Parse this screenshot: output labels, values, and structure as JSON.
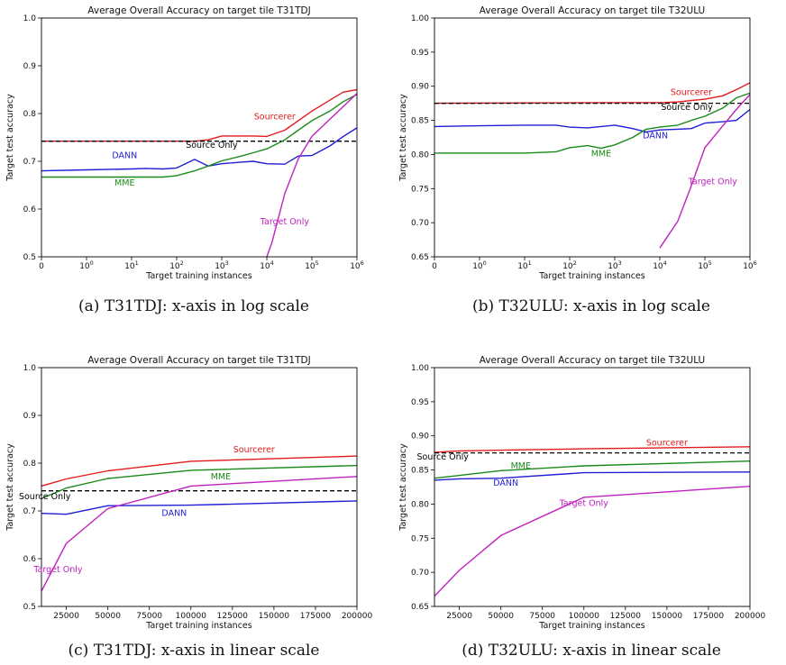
{
  "colors": {
    "Sourcerer": "#e41a1c",
    "Source Only": "#000000",
    "DANN": "#1f1fd6",
    "MME": "#1a8a1a",
    "Target Only": "#c020c0"
  },
  "chart_data": [
    {
      "type": "line",
      "caption": "(a) T31TDJ: x-axis in log scale",
      "title": "Average Overall Accuracy on target tile T31TDJ",
      "xlabel": "Target training instances",
      "ylabel": "Target test accuracy",
      "xscale": "symlog",
      "xlim": [
        0,
        1000000
      ],
      "ylim": [
        0.5,
        1.0
      ],
      "yticks": [
        0.5,
        0.6,
        0.7,
        0.8,
        0.9,
        1.0
      ],
      "ytick_labels": [
        "0.5",
        "0.6",
        "0.7",
        "0.8",
        "0.9",
        "1.0"
      ],
      "xticks": [
        0,
        1,
        10,
        100,
        1000,
        10000,
        100000,
        1000000
      ],
      "xtick_labels": [
        "0",
        "10^0",
        "10^1",
        "10^2",
        "10^3",
        "10^4",
        "10^5",
        "10^6"
      ],
      "series": [
        {
          "name": "Sourcerer",
          "dash": false,
          "x": [
            0,
            250,
            500,
            1000,
            2500,
            5000,
            10000,
            25000,
            50000,
            100000,
            250000,
            500000,
            1000000
          ],
          "y": [
            0.742,
            0.742,
            0.745,
            0.753,
            0.753,
            0.753,
            0.752,
            0.765,
            0.785,
            0.805,
            0.828,
            0.845,
            0.85
          ]
        },
        {
          "name": "Source Only",
          "dash": true,
          "x": [
            0,
            1000000
          ],
          "y": [
            0.742,
            0.742
          ]
        },
        {
          "name": "DANN",
          "dash": false,
          "x": [
            0,
            1,
            10,
            20,
            50,
            100,
            250,
            500,
            1000,
            2500,
            5000,
            10000,
            25000,
            50000,
            100000,
            250000,
            500000,
            1000000
          ],
          "y": [
            0.68,
            0.682,
            0.684,
            0.685,
            0.684,
            0.686,
            0.704,
            0.69,
            0.695,
            0.698,
            0.7,
            0.695,
            0.694,
            0.711,
            0.712,
            0.732,
            0.752,
            0.77
          ]
        },
        {
          "name": "MME",
          "dash": false,
          "x": [
            0,
            1,
            10,
            50,
            100,
            250,
            500,
            1000,
            2500,
            5000,
            10000,
            25000,
            50000,
            100000,
            250000,
            500000,
            1000000
          ],
          "y": [
            0.667,
            0.667,
            0.667,
            0.667,
            0.67,
            0.68,
            0.69,
            0.701,
            0.71,
            0.718,
            0.726,
            0.745,
            0.765,
            0.785,
            0.805,
            0.825,
            0.84
          ]
        },
        {
          "name": "Target Only",
          "dash": false,
          "x": [
            10000,
            13000,
            25000,
            50000,
            100000,
            250000,
            500000,
            1000000
          ],
          "y": [
            0.5,
            0.53,
            0.632,
            0.705,
            0.752,
            0.788,
            0.815,
            0.842
          ]
        }
      ],
      "annotations": [
        {
          "text": "Sourcerer",
          "series": "Sourcerer",
          "x": 15000,
          "y": 0.788
        },
        {
          "text": "Source Only",
          "series": "Source Only",
          "x": 600,
          "y": 0.728
        },
        {
          "text": "DANN",
          "series": "DANN",
          "x": 7,
          "y": 0.707
        },
        {
          "text": "MME",
          "series": "MME",
          "x": 7,
          "y": 0.649
        },
        {
          "text": "Target Only",
          "series": "Target Only",
          "x": 25000,
          "y": 0.568
        }
      ]
    },
    {
      "type": "line",
      "caption": "(b) T32ULU: x-axis in log scale",
      "title": "Average Overall Accuracy on target tile T32ULU",
      "xlabel": "Target training instances",
      "ylabel": "Target test accuracy",
      "xscale": "symlog",
      "xlim": [
        0,
        1000000
      ],
      "ylim": [
        0.65,
        1.0
      ],
      "yticks": [
        0.65,
        0.7,
        0.75,
        0.8,
        0.85,
        0.9,
        0.95,
        1.0
      ],
      "ytick_labels": [
        "0.65",
        "0.70",
        "0.75",
        "0.80",
        "0.85",
        "0.90",
        "0.95",
        "1.00"
      ],
      "xticks": [
        0,
        1,
        10,
        100,
        1000,
        10000,
        100000,
        1000000
      ],
      "xtick_labels": [
        "0",
        "10^0",
        "10^1",
        "10^2",
        "10^3",
        "10^4",
        "10^5",
        "10^6"
      ],
      "series": [
        {
          "name": "Sourcerer",
          "dash": false,
          "x": [
            0,
            1000,
            10000,
            25000,
            50000,
            100000,
            250000,
            500000,
            1000000
          ],
          "y": [
            0.875,
            0.876,
            0.876,
            0.877,
            0.879,
            0.881,
            0.886,
            0.895,
            0.905
          ]
        },
        {
          "name": "Source Only",
          "dash": true,
          "x": [
            0,
            1000000
          ],
          "y": [
            0.875,
            0.875
          ]
        },
        {
          "name": "DANN",
          "dash": false,
          "x": [
            0,
            1,
            10,
            50,
            100,
            250,
            500,
            1000,
            2500,
            5000,
            10000,
            25000,
            50000,
            100000,
            250000,
            500000,
            1000000
          ],
          "y": [
            0.841,
            0.842,
            0.843,
            0.843,
            0.84,
            0.839,
            0.841,
            0.843,
            0.838,
            0.833,
            0.836,
            0.837,
            0.838,
            0.846,
            0.848,
            0.85,
            0.866
          ]
        },
        {
          "name": "MME",
          "dash": false,
          "x": [
            0,
            1,
            10,
            50,
            100,
            250,
            500,
            1000,
            2500,
            5000,
            10000,
            25000,
            50000,
            100000,
            250000,
            500000,
            1000000
          ],
          "y": [
            0.802,
            0.802,
            0.802,
            0.804,
            0.81,
            0.813,
            0.809,
            0.814,
            0.825,
            0.837,
            0.84,
            0.843,
            0.85,
            0.856,
            0.868,
            0.883,
            0.89
          ]
        },
        {
          "name": "Target Only",
          "dash": false,
          "x": [
            10000,
            25000,
            50000,
            100000,
            250000,
            500000,
            1000000
          ],
          "y": [
            0.663,
            0.702,
            0.754,
            0.81,
            0.842,
            0.866,
            0.888
          ]
        }
      ],
      "annotations": [
        {
          "text": "Sourcerer",
          "series": "Sourcerer",
          "x": 50000,
          "y": 0.887
        },
        {
          "text": "Source Only",
          "series": "Source Only",
          "x": 40000,
          "y": 0.865
        },
        {
          "text": "DANN",
          "series": "DANN",
          "x": 8000,
          "y": 0.824
        },
        {
          "text": "MME",
          "series": "MME",
          "x": 500,
          "y": 0.797
        },
        {
          "text": "Target Only",
          "series": "Target Only",
          "x": 150000,
          "y": 0.756
        }
      ]
    },
    {
      "type": "line",
      "caption": "(c) T31TDJ: x-axis in linear scale",
      "title": "Average Overall Accuracy on target tile T31TDJ",
      "xlabel": "Target training instances",
      "ylabel": "Target test accuracy",
      "xscale": "linear",
      "xlim": [
        10000,
        200000
      ],
      "ylim": [
        0.5,
        1.0
      ],
      "yticks": [
        0.5,
        0.6,
        0.7,
        0.8,
        0.9,
        1.0
      ],
      "ytick_labels": [
        "0.5",
        "0.6",
        "0.7",
        "0.8",
        "0.9",
        "1.0"
      ],
      "xticks": [
        25000,
        50000,
        75000,
        100000,
        125000,
        150000,
        175000,
        200000
      ],
      "xtick_labels": [
        "25000",
        "50000",
        "75000",
        "100000",
        "125000",
        "150000",
        "175000",
        "200000"
      ],
      "series": [
        {
          "name": "Sourcerer",
          "dash": false,
          "x": [
            10000,
            25000,
            50000,
            100000,
            200000
          ],
          "y": [
            0.752,
            0.767,
            0.784,
            0.804,
            0.815
          ]
        },
        {
          "name": "Source Only",
          "dash": true,
          "x": [
            10000,
            200000
          ],
          "y": [
            0.742,
            0.742
          ]
        },
        {
          "name": "DANN",
          "dash": false,
          "x": [
            10000,
            25000,
            50000,
            100000,
            200000
          ],
          "y": [
            0.695,
            0.693,
            0.711,
            0.712,
            0.721
          ]
        },
        {
          "name": "MME",
          "dash": false,
          "x": [
            10000,
            25000,
            50000,
            100000,
            200000
          ],
          "y": [
            0.726,
            0.748,
            0.768,
            0.785,
            0.795
          ]
        },
        {
          "name": "Target Only",
          "dash": false,
          "x": [
            10000,
            25000,
            50000,
            100000,
            200000
          ],
          "y": [
            0.532,
            0.632,
            0.705,
            0.752,
            0.772
          ]
        }
      ],
      "annotations": [
        {
          "text": "Sourcerer",
          "series": "Sourcerer",
          "x": 138000,
          "y": 0.823
        },
        {
          "text": "MME",
          "series": "MME",
          "x": 118000,
          "y": 0.766
        },
        {
          "text": "Source Only",
          "series": "Source Only",
          "x": 12000,
          "y": 0.725
        },
        {
          "text": "DANN",
          "series": "DANN",
          "x": 90000,
          "y": 0.69
        },
        {
          "text": "Target Only",
          "series": "Target Only",
          "x": 20000,
          "y": 0.572
        }
      ]
    },
    {
      "type": "line",
      "caption": "(d) T32ULU: x-axis in linear scale",
      "title": "Average Overall Accuracy on target tile T32ULU",
      "xlabel": "Target training instances",
      "ylabel": "Target test accuracy",
      "xscale": "linear",
      "xlim": [
        10000,
        200000
      ],
      "ylim": [
        0.65,
        1.0
      ],
      "yticks": [
        0.65,
        0.7,
        0.75,
        0.8,
        0.85,
        0.9,
        0.95,
        1.0
      ],
      "ytick_labels": [
        "0.65",
        "0.70",
        "0.75",
        "0.80",
        "0.85",
        "0.90",
        "0.95",
        "1.00"
      ],
      "xticks": [
        25000,
        50000,
        75000,
        100000,
        125000,
        150000,
        175000,
        200000
      ],
      "xtick_labels": [
        "25000",
        "50000",
        "75000",
        "100000",
        "125000",
        "150000",
        "175000",
        "200000"
      ],
      "series": [
        {
          "name": "Sourcerer",
          "dash": false,
          "x": [
            10000,
            25000,
            50000,
            100000,
            200000
          ],
          "y": [
            0.876,
            0.878,
            0.879,
            0.881,
            0.884
          ]
        },
        {
          "name": "Source Only",
          "dash": true,
          "x": [
            10000,
            200000
          ],
          "y": [
            0.875,
            0.875
          ]
        },
        {
          "name": "DANN",
          "dash": false,
          "x": [
            10000,
            25000,
            50000,
            100000,
            200000
          ],
          "y": [
            0.835,
            0.837,
            0.838,
            0.846,
            0.847
          ]
        },
        {
          "name": "MME",
          "dash": false,
          "x": [
            10000,
            25000,
            50000,
            100000,
            200000
          ],
          "y": [
            0.838,
            0.842,
            0.849,
            0.856,
            0.863
          ]
        },
        {
          "name": "Target Only",
          "dash": false,
          "x": [
            10000,
            25000,
            50000,
            100000,
            200000
          ],
          "y": [
            0.665,
            0.703,
            0.754,
            0.81,
            0.826
          ]
        }
      ],
      "annotations": [
        {
          "text": "Sourcerer",
          "series": "Sourcerer",
          "x": 150000,
          "y": 0.886
        },
        {
          "text": "Source Only",
          "series": "Source Only",
          "x": 15000,
          "y": 0.865
        },
        {
          "text": "MME",
          "series": "MME",
          "x": 62000,
          "y": 0.852
        },
        {
          "text": "DANN",
          "series": "DANN",
          "x": 53000,
          "y": 0.827
        },
        {
          "text": "Target Only",
          "series": "Target Only",
          "x": 100000,
          "y": 0.797
        }
      ]
    }
  ]
}
